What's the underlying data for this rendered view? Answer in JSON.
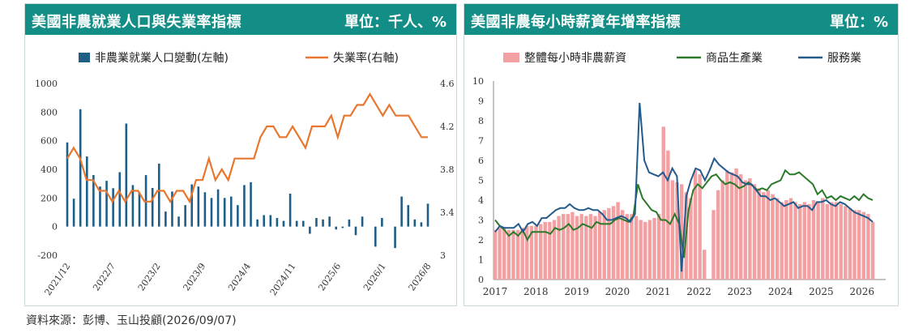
{
  "source": "資料來源：彭博、玉山投顧(2026/09/07)",
  "colors": {
    "header": "#128e86",
    "bar_dark": "#1f5e86",
    "orange": "#e8762d",
    "pink": "#f2a0a2",
    "green": "#2b7a2b",
    "navy": "#245a8c"
  },
  "chart_data": [
    {
      "type": "bar",
      "title": "美國非農就業人口與失業率指標",
      "unit": "單位：千人、%",
      "legend_placement": "top",
      "x_ticks": [
        "2021/12",
        "2022/7",
        "2023/2",
        "2023/9",
        "2024/4",
        "2024/11",
        "2025/6",
        "2026/1",
        "2026/8"
      ],
      "y_left": {
        "min": -200,
        "max": 1000,
        "ticks": [
          "1000",
          "800",
          "600",
          "400",
          "200",
          "0",
          "-200"
        ]
      },
      "y_right": {
        "min": 3.0,
        "max": 4.6,
        "ticks": [
          "4.6",
          "4.2",
          "3.8",
          "3.4",
          "3"
        ]
      },
      "series": [
        {
          "name": "非農業就業人口變動(左軸)",
          "axis": "left",
          "values": [
            588,
            195,
            820,
            490,
            360,
            280,
            320,
            268,
            380,
            720,
            290,
            240,
            360,
            270,
            440,
            105,
            245,
            70,
            150,
            295,
            280,
            240,
            200,
            260,
            200,
            210,
            150,
            290,
            310,
            50,
            80,
            80,
            60,
            40,
            230,
            40,
            40,
            -50,
            60,
            50,
            70,
            -20,
            -10,
            50,
            -60,
            70,
            0,
            -140,
            60,
            0,
            -150,
            210,
            150,
            50,
            30,
            160
          ]
        },
        {
          "name": "失業率(右軸)",
          "axis": "right",
          "values": [
            3.9,
            4.0,
            3.9,
            3.7,
            3.7,
            3.6,
            3.6,
            3.5,
            3.6,
            3.5,
            3.6,
            3.6,
            3.5,
            3.5,
            3.6,
            3.6,
            3.5,
            3.6,
            3.6,
            3.5,
            3.7,
            3.7,
            3.9,
            3.7,
            3.8,
            3.7,
            3.9,
            3.9,
            3.9,
            3.9,
            4.1,
            4.2,
            4.2,
            4.1,
            4.1,
            4.2,
            4.1,
            4.0,
            4.2,
            4.2,
            4.2,
            4.3,
            4.1,
            4.3,
            4.3,
            4.4,
            4.4,
            4.5,
            4.4,
            4.3,
            4.4,
            4.3,
            4.3,
            4.3,
            4.2,
            4.1,
            4.1
          ]
        }
      ]
    },
    {
      "type": "line",
      "title": "美國非農每小時薪資年增率指標",
      "unit": "單位：%",
      "legend_placement": "top",
      "x_ticks": [
        "2017",
        "2018",
        "2019",
        "2020",
        "2021",
        "2022",
        "2023",
        "2024",
        "2025",
        "2026"
      ],
      "y": {
        "min": 0,
        "max": 10,
        "ticks": [
          "0",
          "1",
          "2",
          "3",
          "4",
          "5",
          "6",
          "7",
          "8",
          "9",
          "10"
        ]
      },
      "series": [
        {
          "name": "整體每小時非農薪資",
          "style": "bar",
          "values": [
            2.5,
            2.6,
            2.6,
            2.5,
            2.5,
            2.5,
            2.6,
            2.7,
            2.7,
            2.7,
            2.8,
            2.9,
            2.9,
            3.0,
            3.2,
            3.3,
            3.3,
            3.4,
            3.2,
            3.3,
            3.2,
            3.3,
            3.2,
            3.4,
            3.5,
            3.6,
            3.7,
            3.9,
            3.5,
            3.3,
            3.3,
            3.2,
            3.0,
            2.9,
            3.0,
            3.1,
            3.3,
            7.7,
            6.5,
            5.0,
            4.9,
            4.8,
            4.4,
            4.1,
            5.5,
            5.3,
            1.5,
            -0.3,
            3.5,
            4.5,
            5.0,
            5.5,
            5.4,
            5.6,
            5.3,
            5.0,
            5.1,
            4.8,
            4.6,
            4.4,
            4.5,
            4.3,
            4.1,
            3.9,
            4.0,
            4.1,
            3.9,
            3.8,
            3.9,
            3.8,
            4.0,
            3.9,
            4.1,
            3.8,
            3.9,
            3.9,
            3.8,
            3.7,
            3.6,
            3.5,
            3.5,
            3.4,
            3.3,
            2.9
          ]
        },
        {
          "name": "商品生產業",
          "style": "line",
          "values": [
            3.0,
            2.7,
            2.5,
            2.2,
            2.4,
            2.2,
            2.5,
            2.0,
            2.4,
            2.4,
            2.4,
            2.4,
            2.3,
            2.6,
            2.5,
            2.6,
            2.8,
            2.5,
            2.6,
            2.8,
            2.7,
            2.6,
            2.9,
            2.8,
            2.8,
            2.8,
            3.0,
            3.1,
            3.0,
            2.9,
            3.2,
            4.8,
            4.1,
            3.8,
            3.5,
            3.4,
            3.0,
            3.0,
            2.8,
            3.3,
            2.8,
            1.1,
            3.5,
            4.5,
            4.8,
            4.6,
            4.9,
            5.2,
            5.3,
            5.0,
            4.8,
            4.9,
            4.8,
            4.6,
            4.7,
            4.9,
            4.7,
            4.5,
            4.6,
            4.5,
            4.8,
            4.9,
            5.0,
            5.5,
            5.3,
            5.3,
            5.4,
            5.2,
            5.0,
            4.8,
            4.3,
            4.5,
            4.1,
            4.2,
            4.0,
            4.2,
            4.1,
            4.0,
            4.2,
            4.0,
            4.3,
            4.1,
            4.0
          ]
        },
        {
          "name": "服務業",
          "style": "line",
          "values": [
            2.4,
            2.7,
            2.6,
            2.6,
            2.6,
            2.8,
            2.4,
            2.8,
            2.9,
            2.7,
            3.1,
            3.1,
            3.3,
            3.5,
            3.6,
            3.6,
            3.8,
            3.6,
            3.5,
            3.5,
            3.6,
            3.5,
            3.5,
            3.3,
            3.0,
            3.0,
            3.1,
            3.2,
            3.1,
            2.9,
            3.3,
            8.9,
            6.0,
            5.4,
            5.3,
            5.2,
            5.4,
            5.0,
            5.6,
            5.2,
            0.4,
            4.2,
            5.0,
            5.6,
            5.5,
            5.0,
            5.5,
            6.1,
            5.8,
            5.6,
            5.4,
            5.3,
            5.2,
            4.9,
            4.8,
            4.8,
            4.5,
            4.2,
            4.2,
            4.0,
            4.1,
            3.9,
            3.7,
            3.8,
            3.9,
            3.6,
            3.7,
            3.7,
            3.5,
            3.9,
            3.9,
            4.0,
            3.8,
            3.7,
            3.9,
            3.8,
            3.6,
            3.4,
            3.3,
            3.2,
            3.1,
            2.9
          ]
        }
      ]
    }
  ]
}
